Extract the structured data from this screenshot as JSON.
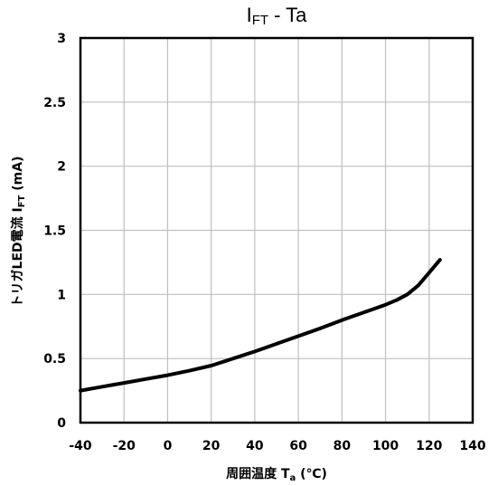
{
  "chart_data": {
    "type": "line",
    "title": {
      "main": "I",
      "sub": "FT",
      "rest": " - Ta"
    },
    "xlabel": {
      "main": "周囲温度  T",
      "sub": "a",
      "rest": " (℃)"
    },
    "ylabel": {
      "main": "トリガLED電流  I",
      "sub": "FT",
      "rest": " (mA)"
    },
    "xlim": [
      -40,
      140
    ],
    "ylim": [
      0,
      3
    ],
    "xticks": [
      -40,
      -20,
      0,
      20,
      40,
      60,
      80,
      100,
      120,
      140
    ],
    "yticks": [
      0,
      0.5,
      1,
      1.5,
      2,
      2.5,
      3
    ],
    "xtick_labels": [
      "-40",
      "-20",
      "0",
      "20",
      "40",
      "60",
      "80",
      "100",
      "120",
      "140"
    ],
    "ytick_labels": [
      "0",
      "0.5",
      "1",
      "1.5",
      "2",
      "2.5",
      "3"
    ],
    "grid": true,
    "legend": "none",
    "series": [
      {
        "x": [
          -40,
          -30,
          -20,
          -10,
          0,
          10,
          20,
          30,
          40,
          50,
          60,
          70,
          80,
          90,
          100,
          105,
          110,
          115,
          120,
          125
        ],
        "y": [
          0.25,
          0.28,
          0.31,
          0.34,
          0.37,
          0.405,
          0.445,
          0.5,
          0.555,
          0.615,
          0.675,
          0.735,
          0.8,
          0.86,
          0.92,
          0.955,
          1.0,
          1.07,
          1.17,
          1.27
        ],
        "color": "#000000"
      }
    ]
  }
}
